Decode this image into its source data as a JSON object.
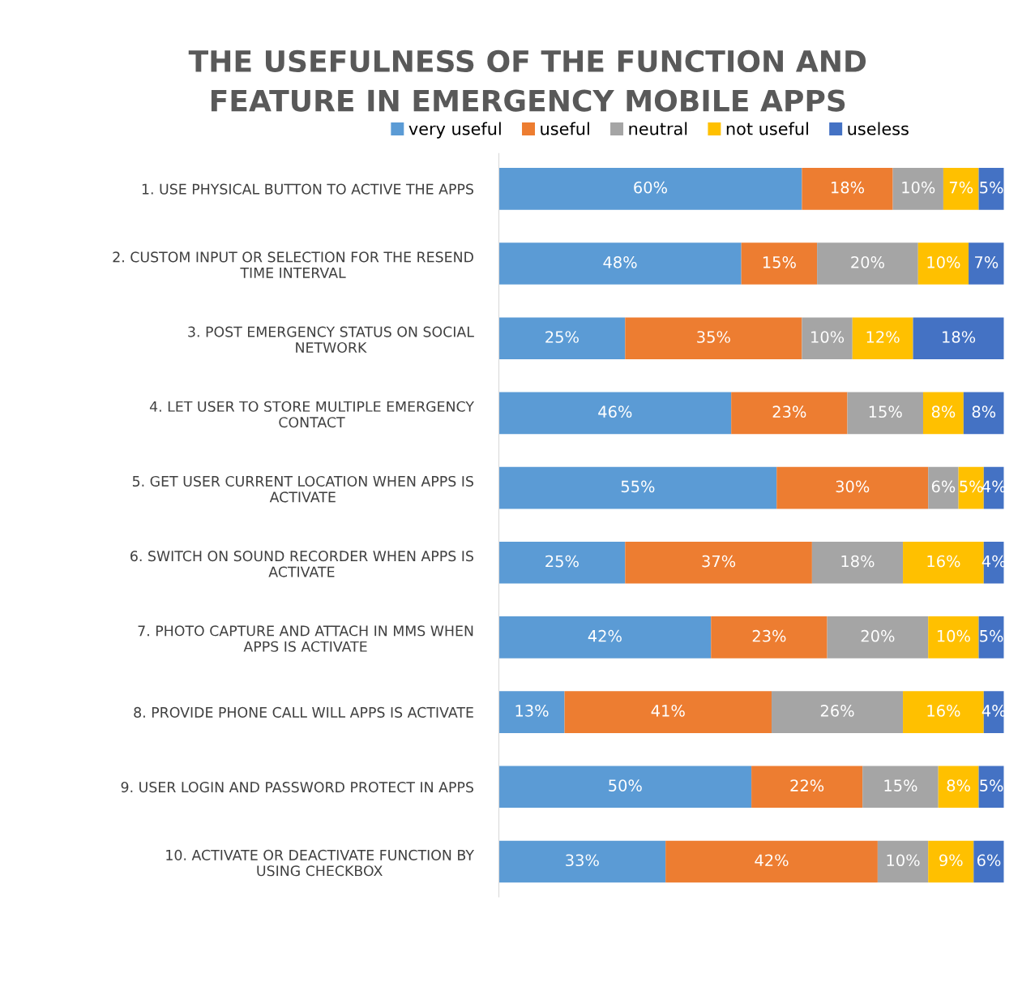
{
  "chart_data": {
    "type": "bar",
    "orientation": "horizontal",
    "stacked": true,
    "title": "THE USEFULNESS OF THE FUNCTION AND\nFEATURE IN EMERGENCY MOBILE APPS",
    "categories": [
      "1. USE PHYSICAL BUTTON TO ACTIVE THE APPS",
      "2. CUSTOM INPUT OR SELECTION FOR THE RESEND\nTIME INTERVAL",
      "3. POST EMERGENCY STATUS ON SOCIAL\nNETWORK",
      "4. LET USER TO STORE MULTIPLE EMERGENCY\nCONTACT",
      "5. GET USER CURRENT LOCATION WHEN APPS IS\nACTIVATE",
      "6. SWITCH ON SOUND RECORDER WHEN APPS IS\nACTIVATE",
      "7. PHOTO CAPTURE AND ATTACH IN MMS WHEN\nAPPS IS ACTIVATE",
      "8. PROVIDE PHONE CALL WILL APPS IS ACTIVATE",
      "9. USER LOGIN AND PASSWORD PROTECT IN APPS",
      "10. ACTIVATE OR DEACTIVATE FUNCTION BY\nUSING CHECKBOX"
    ],
    "series": [
      {
        "name": "very useful",
        "color": "#5b9bd5",
        "values": [
          60,
          48,
          25,
          46,
          55,
          25,
          42,
          13,
          50,
          33
        ],
        "value_labels": [
          "60%",
          "48%",
          "25%",
          "46%",
          "55%",
          "25%",
          "42%",
          "13%",
          "50%",
          "33%"
        ]
      },
      {
        "name": "useful",
        "color": "#ed7d31",
        "values": [
          18,
          15,
          35,
          23,
          30,
          37,
          23,
          41,
          22,
          42
        ],
        "value_labels": [
          "18%",
          "15%",
          "35%",
          "23%",
          "30%",
          "37%",
          "23%",
          "41%",
          "22%",
          "42%"
        ]
      },
      {
        "name": "neutral",
        "color": "#a5a5a5",
        "values": [
          10,
          20,
          10,
          15,
          6,
          18,
          20,
          26,
          15,
          10
        ],
        "value_labels": [
          "10%",
          "20%",
          "10%",
          "15%",
          "6%",
          "18%",
          "20%",
          "26%",
          "15%",
          "10%"
        ]
      },
      {
        "name": "not useful",
        "color": "#ffc000",
        "values": [
          7,
          10,
          12,
          8,
          5,
          16,
          10,
          16,
          8,
          9
        ],
        "value_labels": [
          "7%",
          "10%",
          "12%",
          "8%",
          "5%",
          "16%",
          "10%",
          "16%",
          "8%",
          "9%"
        ]
      },
      {
        "name": "useless",
        "color": "#4472c4",
        "values": [
          5,
          7,
          18,
          8,
          4,
          4,
          5,
          4,
          5,
          6
        ],
        "value_labels": [
          "5%",
          "7%",
          "18%",
          "8%",
          "4%",
          "4%",
          "5%",
          "4%",
          "5%",
          "6%"
        ]
      }
    ],
    "legend": "top",
    "tick_labels": "y",
    "grid": false
  }
}
